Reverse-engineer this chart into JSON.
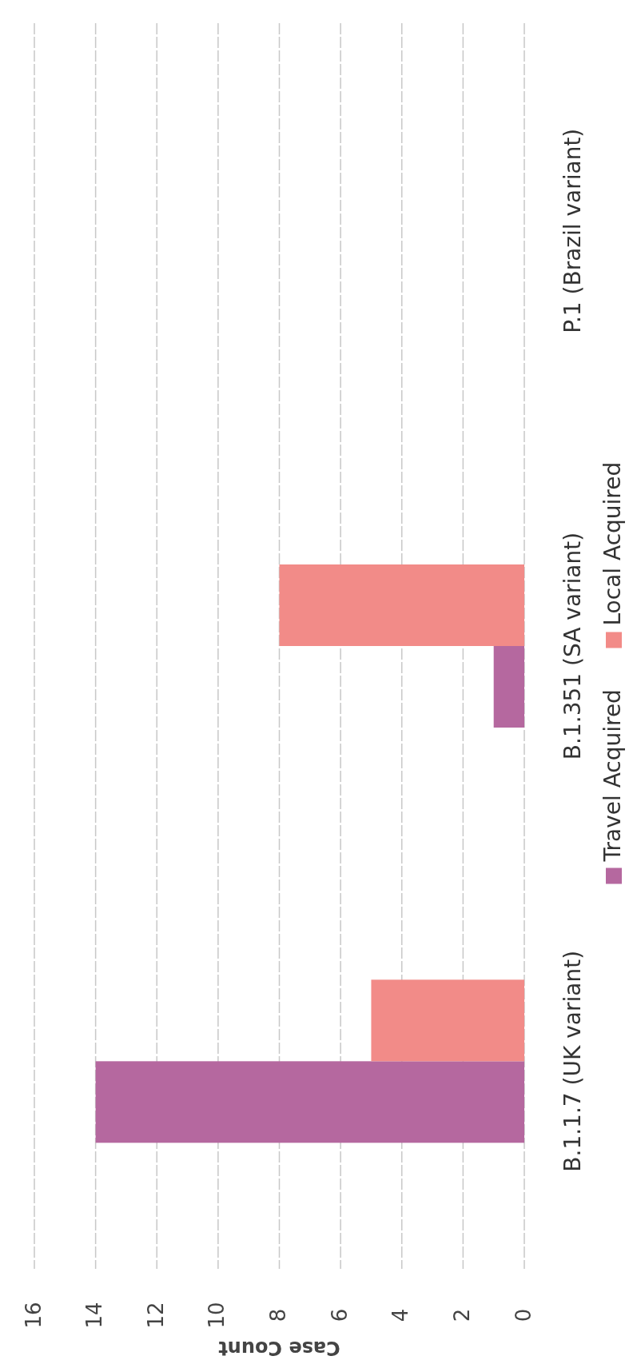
{
  "chart_data": {
    "type": "bar",
    "orientation": "horizontal",
    "xlabel": "Case Count",
    "categories": [
      "P.1 (Brazil variant)",
      "B.1.351 (SA variant)",
      "B.1.1.7 (UK variant)"
    ],
    "series": [
      {
        "name": "Travel Acquired",
        "color": "#b5689f",
        "values": [
          0,
          1,
          14
        ]
      },
      {
        "name": "Local Acquired",
        "color": "#f28b88",
        "values": [
          0,
          8,
          5
        ]
      }
    ],
    "xlim": [
      16,
      0
    ],
    "xticks": [
      16,
      14,
      12,
      10,
      8,
      6,
      4,
      2,
      0
    ],
    "grid": "x",
    "legend": "right"
  }
}
